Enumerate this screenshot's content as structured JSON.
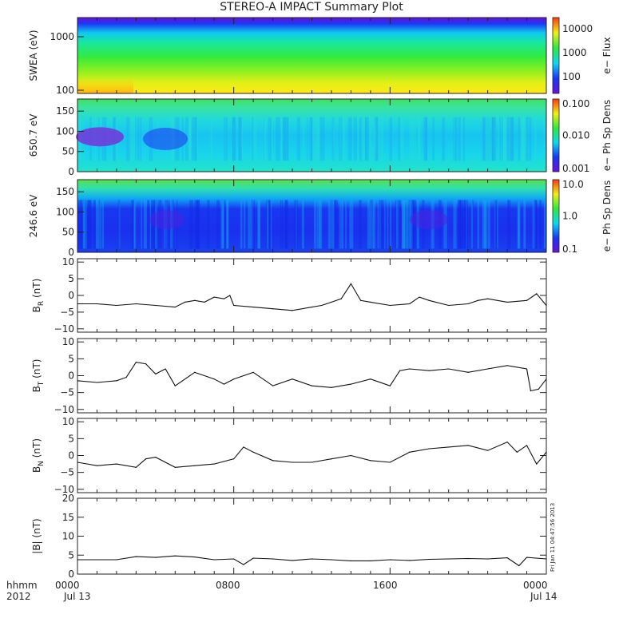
{
  "title": "STEREO-A IMPACT Summary Plot",
  "footer": {
    "row1_label": "hhmm",
    "row2_label": "2012",
    "time_ticks": [
      "0000",
      "0800",
      "1600",
      "0000"
    ],
    "date_left": "Jul 13",
    "date_right": "Jul 14"
  },
  "stamp": "Fri Jan 11 04:47:56 2013",
  "chart_data": [
    {
      "type": "heatmap",
      "ylabel": "SWEA (eV)",
      "yscale": "log",
      "y_ticks": [
        "1000",
        "100"
      ],
      "colorbar": {
        "label": "e− Flux",
        "scale": "log",
        "ticks": [
          "10000",
          "1000",
          "100"
        ]
      },
      "description_colors": [
        "#5a18d8",
        "#1a3cf0",
        "#12d8e8",
        "#2ee84a",
        "#ffe81a",
        "#ff9a10"
      ]
    },
    {
      "type": "heatmap",
      "ylabel": "650.7 eV",
      "y_ticks": [
        "150",
        "100",
        "50",
        "0"
      ],
      "ylim": [
        0,
        180
      ],
      "colorbar": {
        "label": "e− Ph Sp Dens",
        "scale": "log",
        "ticks": [
          "0.100",
          "0.010",
          "0.001"
        ]
      }
    },
    {
      "type": "heatmap",
      "ylabel": "246.6 eV",
      "y_ticks": [
        "150",
        "100",
        "50",
        "0"
      ],
      "ylim": [
        0,
        180
      ],
      "colorbar": {
        "label": "e− Ph Sp Dens",
        "scale": "log",
        "ticks": [
          "10.0",
          "1.0",
          "0.1"
        ]
      }
    },
    {
      "type": "line",
      "ylabel": "B",
      "ylabel_sub": "R",
      "ylabel_unit": "(nT)",
      "y_ticks": [
        "10",
        "5",
        "0",
        "−5",
        "−10"
      ],
      "ylim": [
        -11,
        11
      ],
      "x_hours": [
        0,
        1,
        2,
        3,
        4,
        5,
        5.5,
        6,
        6.5,
        7,
        7.5,
        7.8,
        8,
        9,
        10,
        11,
        12,
        12.5,
        13,
        13.5,
        14,
        14.5,
        15,
        16,
        17,
        17.5,
        18,
        19,
        20,
        20.5,
        21,
        22,
        23,
        23.5,
        24
      ],
      "values": [
        -2.5,
        -2.5,
        -3,
        -2.5,
        -3,
        -3.5,
        -2,
        -1.5,
        -2,
        -0.5,
        -1,
        0,
        -3,
        -3.5,
        -4,
        -4.5,
        -3.5,
        -3,
        -2,
        -1,
        3.5,
        -1.5,
        -2,
        -3,
        -2.5,
        -0.5,
        -1.5,
        -3,
        -2.5,
        -1.5,
        -1,
        -2,
        -1.5,
        0.5,
        -3
      ]
    },
    {
      "type": "line",
      "ylabel": "B",
      "ylabel_sub": "T",
      "ylabel_unit": "(nT)",
      "y_ticks": [
        "10",
        "5",
        "0",
        "−5",
        "−10"
      ],
      "ylim": [
        -11,
        11
      ],
      "x_hours": [
        0,
        1,
        2,
        2.5,
        3,
        3.5,
        4,
        4.5,
        5,
        6,
        7,
        7.5,
        8,
        9,
        10,
        11,
        12,
        13,
        14,
        15,
        16,
        16.5,
        17,
        18,
        19,
        20,
        21,
        22,
        23,
        23.2,
        23.6,
        24
      ],
      "values": [
        -1.5,
        -2,
        -1.5,
        -0.5,
        4,
        3.5,
        0.5,
        2,
        -3,
        1,
        -1,
        -2.5,
        -1,
        1,
        -3,
        -1,
        -3,
        -3.5,
        -2.5,
        -1,
        -3,
        1.5,
        2,
        1.5,
        2,
        1,
        2,
        3,
        2,
        -4.5,
        -4,
        -1
      ]
    },
    {
      "type": "line",
      "ylabel": "B",
      "ylabel_sub": "N",
      "ylabel_unit": "(nT)",
      "y_ticks": [
        "10",
        "5",
        "0",
        "−5",
        "−10"
      ],
      "ylim": [
        -11,
        11
      ],
      "x_hours": [
        0,
        1,
        2,
        3,
        3.5,
        4,
        5,
        6,
        7,
        8,
        8.5,
        9,
        10,
        11,
        12,
        13,
        14,
        15,
        16,
        17,
        18,
        19,
        20,
        21,
        22,
        22.5,
        23,
        23.5,
        24
      ],
      "values": [
        -2,
        -3,
        -2.5,
        -3.5,
        -1,
        -0.5,
        -3.5,
        -3,
        -2.5,
        -1,
        2.5,
        1,
        -1.5,
        -2,
        -2,
        -1,
        0,
        -1.5,
        -2,
        1,
        2,
        2.5,
        3,
        1.5,
        4,
        1,
        3,
        -2.5,
        1
      ]
    },
    {
      "type": "line",
      "ylabel": "|B| (nT)",
      "y_ticks": [
        "20",
        "15",
        "10",
        "5",
        "0"
      ],
      "ylim": [
        0,
        20
      ],
      "x_hours": [
        0,
        2,
        3,
        4,
        5,
        6,
        7,
        8,
        8.5,
        9,
        10,
        11,
        12,
        13,
        14,
        15,
        16,
        17,
        18,
        19,
        20,
        21,
        22,
        22.6,
        23,
        24
      ],
      "values": [
        3.8,
        3.8,
        4.6,
        4.4,
        4.8,
        4.5,
        3.8,
        4.0,
        2.5,
        4.2,
        4.0,
        3.6,
        4.0,
        3.8,
        3.5,
        3.5,
        3.8,
        3.6,
        3.9,
        4.0,
        4.1,
        4.0,
        4.3,
        2.2,
        4.4,
        4.0
      ]
    }
  ]
}
